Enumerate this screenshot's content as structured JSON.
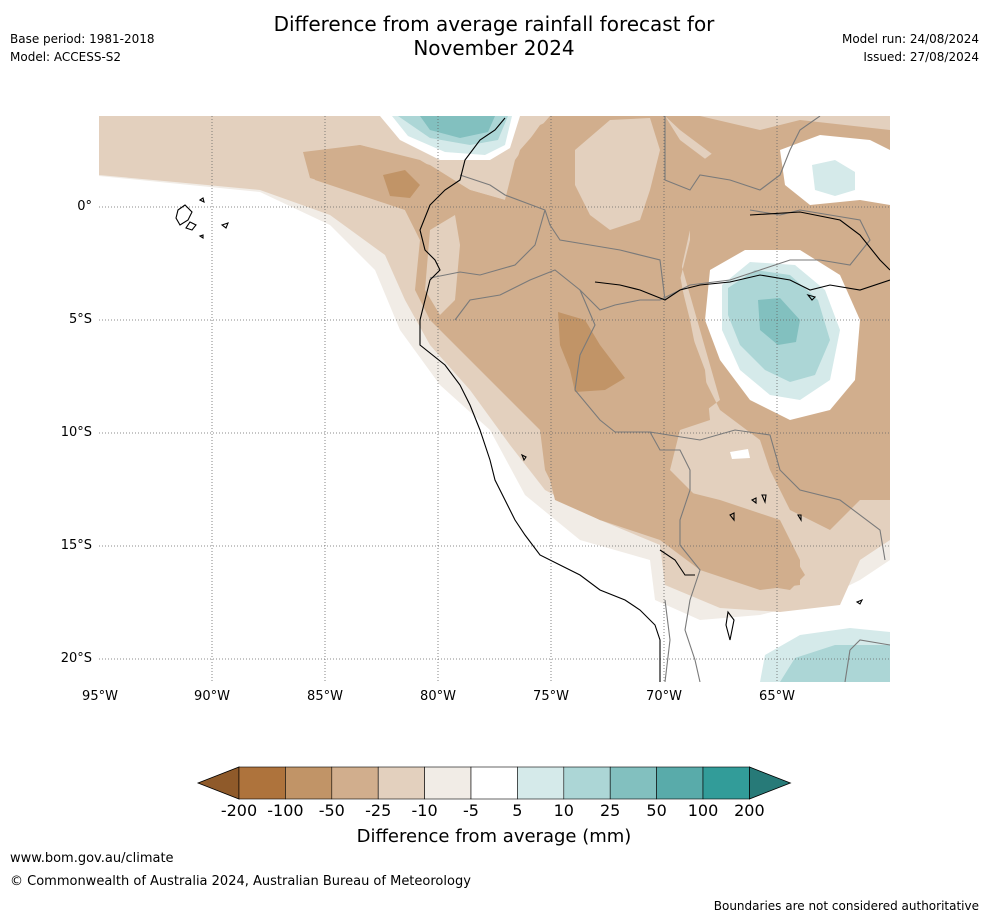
{
  "header": {
    "title_line1": "Difference from average rainfall forecast for",
    "title_line2": "November 2024",
    "base_period": "Base period: 1981-2018",
    "model": "Model: ACCESS-S2",
    "model_run": "Model run: 24/08/2024",
    "issued": "Issued: 27/08/2024"
  },
  "map": {
    "lat_labels": [
      "0°",
      "5°S",
      "10°S",
      "15°S",
      "20°S"
    ],
    "lon_labels": [
      "95°W",
      "90°W",
      "85°W",
      "80°W",
      "75°W",
      "70°W",
      "65°W"
    ],
    "extent": {
      "lon": [
        -95,
        -60
      ],
      "lat": [
        -21,
        4
      ]
    },
    "ocean_color": "#ffffff",
    "coast_color": "#000000",
    "border_color": "#777777"
  },
  "legend": {
    "title": "Difference from average (mm)",
    "labels": [
      "-200",
      "-100",
      "-50",
      "-25",
      "-10",
      "-5",
      "5",
      "10",
      "25",
      "50",
      "100",
      "200"
    ],
    "colors": [
      "#8f5a2a",
      "#ae733c",
      "#c19467",
      "#d1ae8d",
      "#e3d0be",
      "#f1ece6",
      "#ffffff",
      "#d5eaea",
      "#acd6d6",
      "#82c0bf",
      "#59abaa",
      "#329c99",
      "#277a78"
    ]
  },
  "footer": {
    "url": "www.bom.gov.au/climate",
    "copyright": "© Commonwealth of Australia 2024, Australian Bureau of Meteorology",
    "disclaimer": "Boundaries are not considered authoritative"
  }
}
